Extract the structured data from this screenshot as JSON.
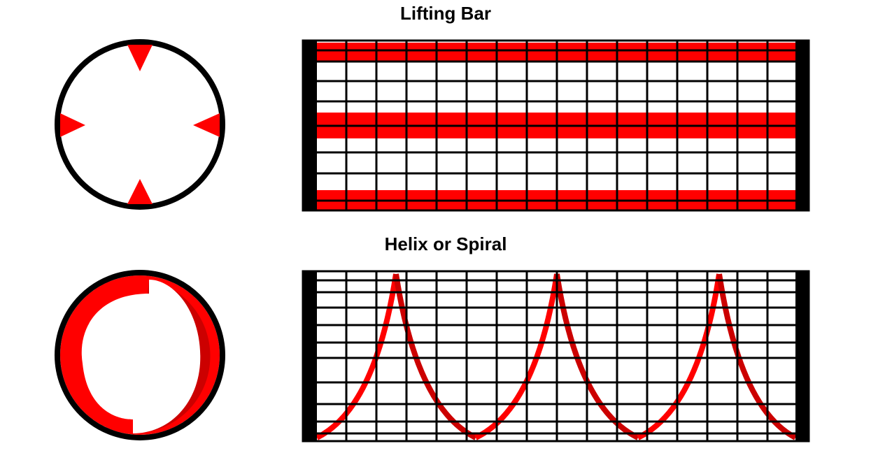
{
  "sections": [
    {
      "title": "Lifting Bar"
    },
    {
      "title": "Helix or Spiral"
    }
  ]
}
